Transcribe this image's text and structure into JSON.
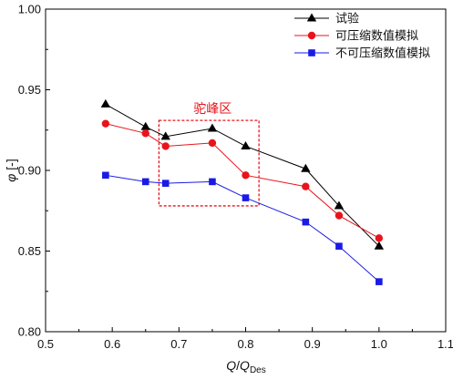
{
  "chart_data": {
    "type": "line",
    "x": [
      0.59,
      0.65,
      0.68,
      0.75,
      0.8,
      0.89,
      0.94,
      1.0
    ],
    "xlim": [
      0.5,
      1.1
    ],
    "ylim": [
      0.8,
      1.0
    ],
    "xticks": [
      "0.5",
      "0.6",
      "0.7",
      "0.8",
      "0.9",
      "1.0",
      "1.1"
    ],
    "yticks": [
      "0.80",
      "0.85",
      "0.90",
      "0.95",
      "1.00"
    ],
    "xlabel": {
      "base": "Q",
      "slash": "/",
      "main": "Q",
      "sub": "Des"
    },
    "ylabel": {
      "symbol": "φ",
      "unit": " [-]"
    },
    "legend_position": "top-right",
    "grid": false,
    "series": [
      {
        "name": "试验",
        "color": "#000000",
        "marker": "triangle",
        "values": [
          0.941,
          0.927,
          0.921,
          0.926,
          0.915,
          0.901,
          0.878,
          0.853
        ]
      },
      {
        "name": "可压缩数值模拟",
        "color": "#e8141c",
        "marker": "circle",
        "values": [
          0.929,
          0.923,
          0.915,
          0.917,
          0.897,
          0.89,
          0.872,
          0.858
        ]
      },
      {
        "name": "不可压缩数值模拟",
        "color": "#1a1ae6",
        "marker": "square",
        "values": [
          0.897,
          0.893,
          0.892,
          0.893,
          0.883,
          0.868,
          0.853,
          0.831
        ]
      }
    ],
    "annotation": {
      "text": "驼峰区",
      "color": "#e8141c",
      "x_range": [
        0.67,
        0.82
      ],
      "y_range": [
        0.878,
        0.931
      ]
    }
  }
}
